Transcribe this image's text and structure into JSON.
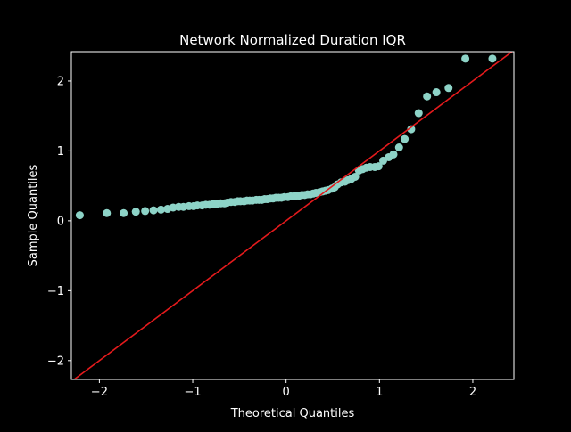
{
  "chart_data": {
    "type": "scatter",
    "title": "Network Normalized Duration IQR",
    "xlabel": "Theoretical Quantiles",
    "ylabel": "Sample Quantiles",
    "xlim": [
      -2.3,
      2.44
    ],
    "ylim": [
      -2.27,
      2.42
    ],
    "xticks": [
      -2,
      -1,
      0,
      1,
      2
    ],
    "xtick_labels": [
      "−2",
      "−1",
      "0",
      "1",
      "2"
    ],
    "yticks": [
      -2,
      -1,
      0,
      1,
      2
    ],
    "ytick_labels": [
      "−2",
      "−1",
      "0",
      "1",
      "2"
    ],
    "grid": false,
    "background": "#000000",
    "foreground": "#ffffff",
    "marker_color": "#8dd3c7",
    "reference_line": {
      "color": "#e41a1c",
      "slope": 1.0,
      "intercept": 0.0
    },
    "series": [
      {
        "x": [
          -2.21,
          -1.92,
          -1.74,
          -1.61,
          -1.51,
          -1.42,
          -1.34,
          -1.27,
          -1.21,
          -1.15,
          -1.1,
          -1.04,
          -0.99,
          -0.95,
          -0.9,
          -0.86,
          -0.82,
          -0.78,
          -0.74,
          -0.7,
          -0.66,
          -0.63,
          -0.59,
          -0.55,
          -0.52,
          -0.49,
          -0.45,
          -0.42,
          -0.39,
          -0.36,
          -0.32,
          -0.29,
          -0.26,
          -0.23,
          -0.2,
          -0.17,
          -0.14,
          -0.11,
          -0.08,
          -0.05,
          -0.02,
          0.02,
          0.05,
          0.08,
          0.11,
          0.14,
          0.17,
          0.2,
          0.23,
          0.26,
          0.29,
          0.32,
          0.36,
          0.39,
          0.42,
          0.45,
          0.49,
          0.52,
          0.55,
          0.59,
          0.63,
          0.66,
          0.7,
          0.74,
          0.78,
          0.82,
          0.86,
          0.9,
          0.95,
          0.99,
          1.04,
          1.1,
          1.15,
          1.21,
          1.27,
          1.34,
          1.42,
          1.51,
          1.61,
          1.74,
          1.92,
          2.21
        ],
        "y": [
          0.08,
          0.11,
          0.11,
          0.13,
          0.14,
          0.15,
          0.16,
          0.17,
          0.19,
          0.2,
          0.2,
          0.21,
          0.21,
          0.22,
          0.22,
          0.23,
          0.23,
          0.24,
          0.24,
          0.25,
          0.25,
          0.26,
          0.27,
          0.27,
          0.28,
          0.28,
          0.28,
          0.29,
          0.29,
          0.29,
          0.3,
          0.3,
          0.3,
          0.31,
          0.31,
          0.32,
          0.32,
          0.33,
          0.33,
          0.33,
          0.34,
          0.34,
          0.35,
          0.35,
          0.36,
          0.36,
          0.37,
          0.37,
          0.38,
          0.38,
          0.39,
          0.4,
          0.41,
          0.42,
          0.43,
          0.44,
          0.46,
          0.48,
          0.52,
          0.55,
          0.56,
          0.58,
          0.6,
          0.63,
          0.72,
          0.74,
          0.76,
          0.77,
          0.77,
          0.78,
          0.86,
          0.91,
          0.95,
          1.05,
          1.17,
          1.31,
          1.54,
          1.78,
          1.84,
          1.9,
          2.32,
          2.32
        ]
      }
    ]
  }
}
